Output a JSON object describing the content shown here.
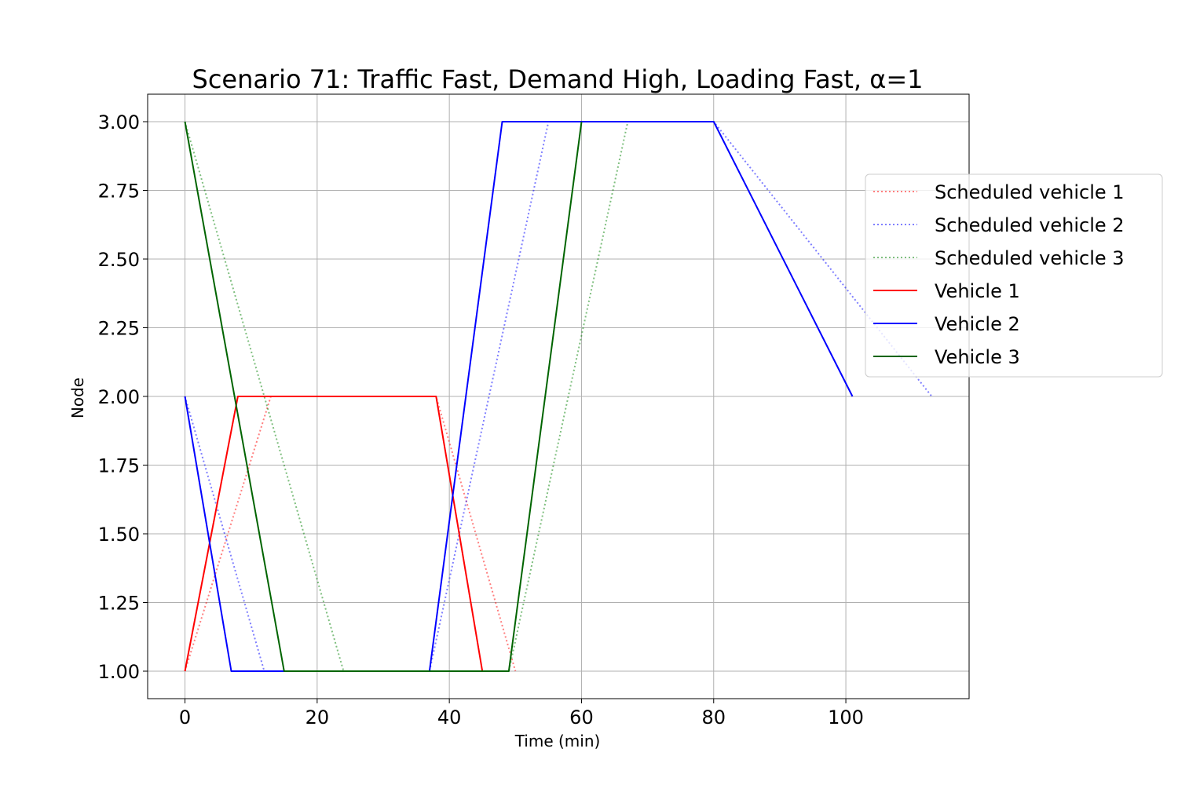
{
  "chart_data": {
    "type": "line",
    "title": "Scenario 71: Traffic Fast, Demand High, Loading Fast, α=1",
    "xlabel": "Time (min)",
    "ylabel": "Node",
    "xlim": [
      -5.65,
      118.65
    ],
    "ylim": [
      0.9,
      3.1
    ],
    "xticks": [
      0,
      20,
      40,
      60,
      80,
      100
    ],
    "xtick_labels": [
      "0",
      "20",
      "40",
      "60",
      "80",
      "100"
    ],
    "yticks": [
      1.0,
      1.25,
      1.5,
      1.75,
      2.0,
      2.25,
      2.5,
      2.75,
      3.0
    ],
    "ytick_labels": [
      "1.00",
      "1.25",
      "1.50",
      "1.75",
      "2.00",
      "2.25",
      "2.50",
      "2.75",
      "3.00"
    ],
    "grid": true,
    "legend_position": "right",
    "series": [
      {
        "name": "Scheduled vehicle 1",
        "color": "#ff0000",
        "style": "dotted",
        "opacity": 0.5,
        "points": [
          [
            0,
            1
          ],
          [
            13,
            2
          ],
          [
            38,
            2
          ],
          [
            50,
            1
          ]
        ]
      },
      {
        "name": "Scheduled vehicle 2",
        "color": "#0000ff",
        "style": "dotted",
        "opacity": 0.5,
        "points": [
          [
            0,
            2
          ],
          [
            12,
            1
          ],
          [
            37,
            1
          ],
          [
            55,
            3
          ],
          [
            80,
            3
          ],
          [
            113,
            2
          ]
        ]
      },
      {
        "name": "Scheduled vehicle 3",
        "color": "#008000",
        "style": "dotted",
        "opacity": 0.5,
        "points": [
          [
            0,
            3
          ],
          [
            24,
            1
          ],
          [
            49,
            1
          ],
          [
            67,
            3
          ]
        ]
      },
      {
        "name": "Vehicle 1",
        "color": "#ff0000",
        "style": "solid",
        "opacity": 1,
        "points": [
          [
            0,
            1
          ],
          [
            8,
            2
          ],
          [
            38,
            2
          ],
          [
            45,
            1
          ],
          [
            49,
            1
          ]
        ]
      },
      {
        "name": "Vehicle 2",
        "color": "#0000ff",
        "style": "solid",
        "opacity": 1,
        "points": [
          [
            0,
            2
          ],
          [
            7,
            1
          ],
          [
            37,
            1
          ],
          [
            48,
            3
          ],
          [
            80,
            3
          ],
          [
            101,
            2
          ]
        ]
      },
      {
        "name": "Vehicle 3",
        "color": "#006400",
        "style": "solid",
        "opacity": 1,
        "points": [
          [
            0,
            3
          ],
          [
            15,
            1
          ],
          [
            49,
            1
          ],
          [
            60,
            3
          ]
        ]
      }
    ]
  }
}
